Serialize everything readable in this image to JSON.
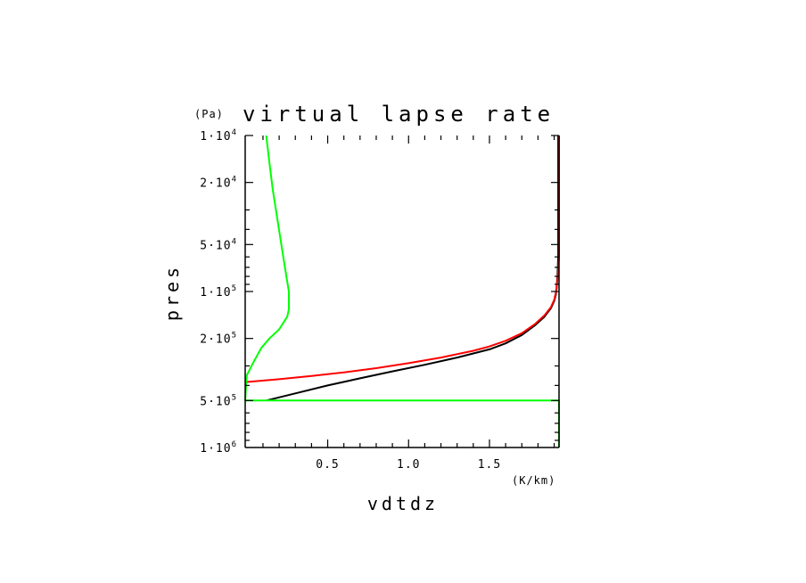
{
  "chart_data": {
    "type": "line",
    "title": "virtual lapse rate",
    "ylabel": "pres",
    "yunit": "(Pa)",
    "xlabel": "vdtdz",
    "xunit": "(K/km)",
    "yscale": "log",
    "yinverted": true,
    "xlim": [
      -0.01,
      1.93
    ],
    "ylim": [
      10000,
      1000000
    ],
    "xticks": [
      {
        "value": 0.5,
        "label": "0.5"
      },
      {
        "value": 1.0,
        "label": "1.0"
      },
      {
        "value": 1.5,
        "label": "1.5"
      }
    ],
    "yticks": [
      {
        "value": 10000,
        "mant": "1·10",
        "exp": "4"
      },
      {
        "value": 20000,
        "mant": "2·10",
        "exp": "4"
      },
      {
        "value": 50000,
        "mant": "5·10",
        "exp": "4"
      },
      {
        "value": 100000,
        "mant": "1·10",
        "exp": "5"
      },
      {
        "value": 200000,
        "mant": "2·10",
        "exp": "5"
      },
      {
        "value": 500000,
        "mant": "5·10",
        "exp": "5"
      },
      {
        "value": 1000000,
        "mant": "1·10",
        "exp": "6"
      }
    ],
    "grid": false,
    "series": [
      {
        "color": "#000000",
        "points": [
          [
            0.12,
            500000
          ],
          [
            0.3,
            450000
          ],
          [
            0.5,
            400000
          ],
          [
            0.7,
            360000
          ],
          [
            0.9,
            325000
          ],
          [
            1.1,
            295000
          ],
          [
            1.3,
            265000
          ],
          [
            1.5,
            235000
          ],
          [
            1.6,
            215000
          ],
          [
            1.7,
            190000
          ],
          [
            1.78,
            165000
          ],
          [
            1.84,
            145000
          ],
          [
            1.88,
            128000
          ],
          [
            1.9,
            115000
          ],
          [
            1.91,
            105000
          ],
          [
            1.915,
            95000
          ],
          [
            1.92,
            80000
          ],
          [
            1.925,
            60000
          ],
          [
            1.925,
            10000
          ]
        ]
      },
      {
        "color": "#ff0000",
        "points": [
          [
            0.0,
            380000
          ],
          [
            0.2,
            365000
          ],
          [
            0.4,
            348000
          ],
          [
            0.6,
            330000
          ],
          [
            0.8,
            310000
          ],
          [
            1.0,
            288000
          ],
          [
            1.2,
            265000
          ],
          [
            1.4,
            240000
          ],
          [
            1.5,
            225000
          ],
          [
            1.6,
            207000
          ],
          [
            1.7,
            185000
          ],
          [
            1.78,
            162000
          ],
          [
            1.84,
            142000
          ],
          [
            1.88,
            126000
          ],
          [
            1.9,
            113000
          ],
          [
            1.91,
            102000
          ],
          [
            1.92,
            85000
          ],
          [
            1.93,
            60000
          ],
          [
            1.93,
            10000
          ]
        ]
      },
      {
        "color": "#00ff00",
        "points": [
          [
            0.12,
            10000
          ],
          [
            0.14,
            15000
          ],
          [
            0.16,
            22000
          ],
          [
            0.19,
            35000
          ],
          [
            0.22,
            55000
          ],
          [
            0.24,
            75000
          ],
          [
            0.26,
            100000
          ],
          [
            0.26,
            130000
          ],
          [
            0.25,
            145000
          ],
          [
            0.2,
            175000
          ],
          [
            0.14,
            200000
          ],
          [
            0.09,
            230000
          ],
          [
            0.04,
            285000
          ],
          [
            0.0,
            345000
          ],
          [
            -0.01,
            500000
          ]
        ]
      },
      {
        "color": "#00ff00",
        "points": [
          [
            -0.01,
            500000
          ],
          [
            1.93,
            500000
          ],
          [
            1.93,
            1000000
          ]
        ]
      }
    ]
  }
}
